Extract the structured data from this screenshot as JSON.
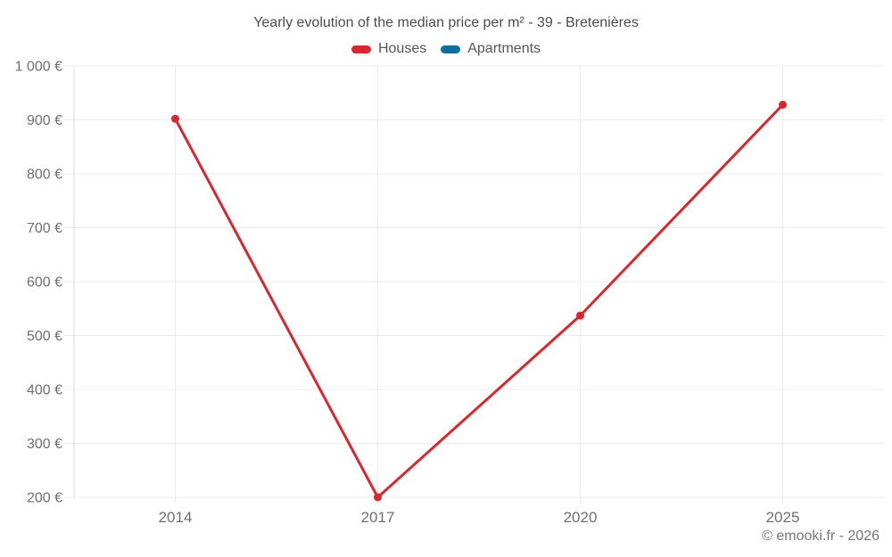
{
  "chart_data": {
    "type": "line",
    "title": "Yearly evolution of the median price per m² - 39 - Bretenières",
    "categories": [
      "2014",
      "2017",
      "2020",
      "2025"
    ],
    "series": [
      {
        "name": "Houses",
        "color": "#d8282e",
        "values": [
          902,
          200,
          537,
          928
        ]
      },
      {
        "name": "Apartments",
        "color": "#0e6fa0",
        "values": []
      }
    ],
    "ylim": [
      200,
      1000
    ],
    "y_ticks": [
      {
        "value": 1000,
        "label": "1 000 €"
      },
      {
        "value": 900,
        "label": "900 €"
      },
      {
        "value": 800,
        "label": "800 €"
      },
      {
        "value": 700,
        "label": "700 €"
      },
      {
        "value": 600,
        "label": "600 €"
      },
      {
        "value": 500,
        "label": "500 €"
      },
      {
        "value": 400,
        "label": "400 €"
      },
      {
        "value": 300,
        "label": "300 €"
      },
      {
        "value": 200,
        "label": "200 €"
      }
    ],
    "xlabel": "",
    "ylabel": "",
    "grid": true,
    "legend_position": "top",
    "colors": {
      "grid": "#ececec",
      "axis": "#dcdcdc",
      "tick_text": "#707070"
    }
  },
  "footer": {
    "text": "© emooki.fr - 2026"
  }
}
